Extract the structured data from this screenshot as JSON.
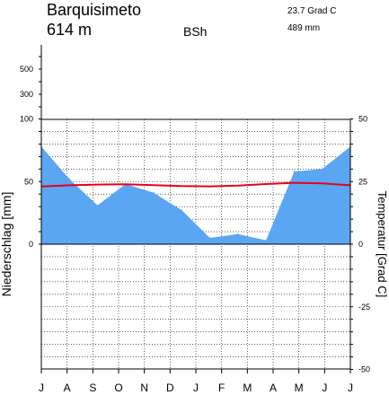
{
  "chart_data": {
    "type": "area",
    "station": "Barquisimeto",
    "elevation": "614 m",
    "climate_class": "BSh",
    "mean_temperature": "23.7 Grad C",
    "annual_precipitation": "489 mm",
    "xlabel": "",
    "categories": [
      "J",
      "A",
      "S",
      "O",
      "N",
      "D",
      "J",
      "F",
      "M",
      "A",
      "M",
      "J"
    ],
    "x_tick_labels": [
      "J",
      "A",
      "S",
      "O",
      "N",
      "D",
      "J",
      "F",
      "M",
      "A",
      "M",
      "J",
      "J"
    ],
    "ylabel_left": "Niederschlag [mm]",
    "ylabel_right": "Temperatur [Grad C]",
    "left_axis": {
      "lower_ticks": [
        "0",
        "50",
        "100"
      ],
      "upper_ticks": [
        "300",
        "500"
      ],
      "lower_range": [
        0,
        100
      ]
    },
    "right_axis": {
      "ticks": [
        "50",
        "25",
        "0",
        "-25",
        "-50"
      ],
      "range": [
        -50,
        50
      ]
    },
    "grid": true,
    "series": [
      {
        "kind": "precipitation",
        "color": "#5aa6f2",
        "values": [
          78,
          52,
          31,
          48,
          41,
          27,
          5,
          8,
          3,
          58,
          60,
          78
        ]
      },
      {
        "kind": "temperature",
        "color": "#e8001c",
        "values": [
          23.0,
          23.5,
          23.8,
          23.9,
          23.6,
          23.2,
          23.1,
          23.4,
          24.0,
          24.5,
          24.3,
          23.5
        ]
      }
    ]
  }
}
